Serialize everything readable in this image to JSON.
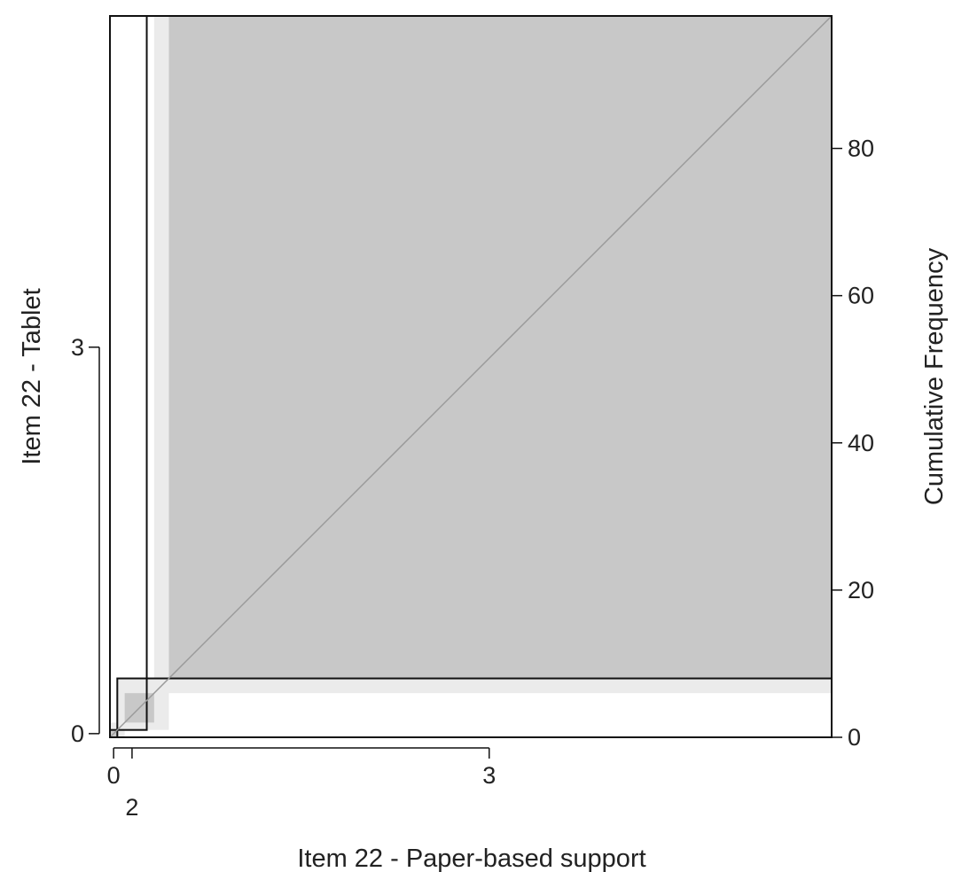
{
  "chart_data": {
    "type": "agreement",
    "xlabel": "Item 22 - Paper-based support",
    "ylabel": "Item 22 - Tablet",
    "y2label": "Cumulative Frequency",
    "x_ticks": [
      "0",
      "2",
      "3"
    ],
    "y_ticks": [
      "0",
      "3"
    ],
    "y2_ticks": [
      "0",
      "20",
      "40",
      "60",
      "80"
    ],
    "total": 98,
    "categories": [
      "0",
      "2",
      "3"
    ],
    "cumulative_x": [
      1,
      5,
      98
    ],
    "cumulative_y": [
      1,
      8,
      98
    ],
    "blocks": [
      {
        "x": [
          0,
          1
        ],
        "y": [
          0,
          1
        ]
      },
      {
        "x": [
          2,
          6
        ],
        "y": [
          2,
          6
        ]
      },
      {
        "x": [
          8,
          98
        ],
        "y": [
          8,
          98
        ]
      }
    ],
    "partial_bands": [
      {
        "x": [
          0,
          2
        ],
        "y": [
          0,
          2
        ]
      },
      {
        "x": [
          1,
          8
        ],
        "y": [
          1,
          8
        ]
      },
      {
        "x": [
          6,
          98
        ],
        "y": [
          6,
          98
        ]
      }
    ],
    "colors": {
      "exact": "#c8c8c8",
      "partial": "#ebebeb",
      "diagonal": "#9a9a9a",
      "frame": "#111111"
    }
  }
}
